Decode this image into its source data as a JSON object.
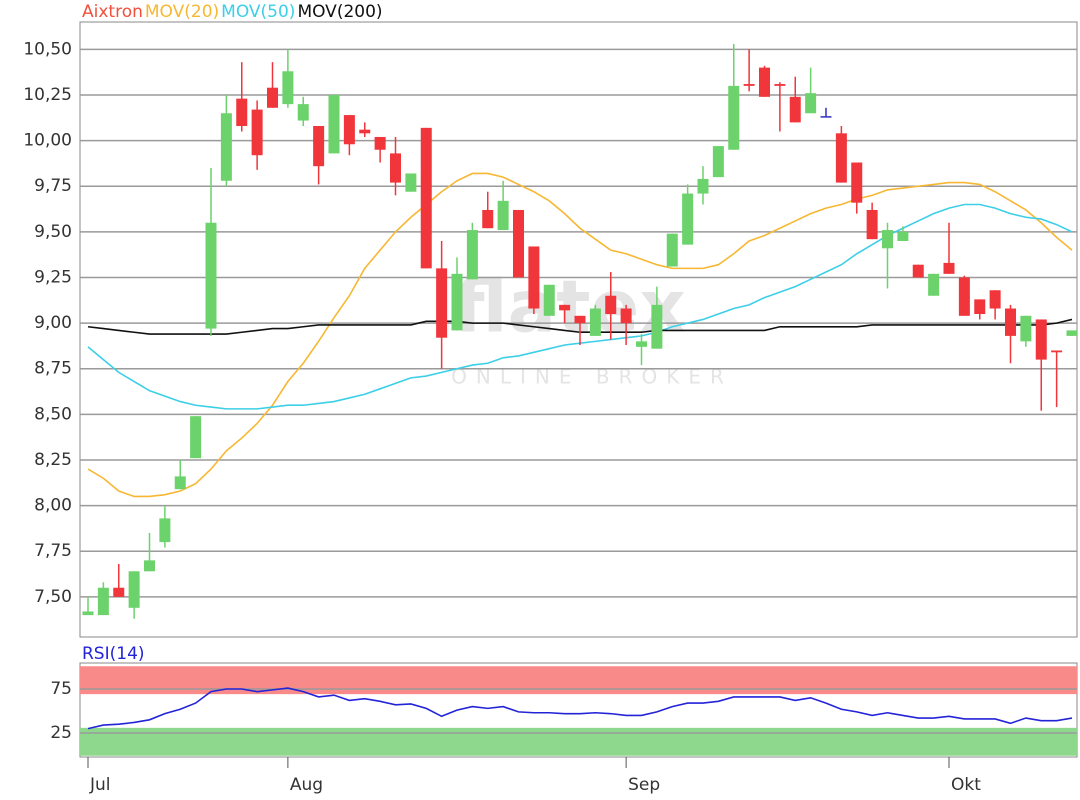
{
  "chart_data": [
    {
      "type": "candlestick",
      "name": "Aixtron",
      "name_color": "#f0503c",
      "up_color": "#6cd26c",
      "down_color": "#f0353b",
      "flat_color": "#3030c0",
      "categories": [
        "Jul",
        null,
        null,
        null,
        null,
        null,
        null,
        null,
        null,
        null,
        null,
        null,
        null,
        "Aug",
        null,
        null,
        null,
        null,
        null,
        null,
        null,
        null,
        null,
        null,
        null,
        null,
        null,
        null,
        null,
        null,
        null,
        null,
        null,
        null,
        null,
        "Sep",
        null,
        null,
        null,
        null,
        null,
        null,
        null,
        null,
        null,
        null,
        null,
        null,
        null,
        null,
        null,
        null,
        null,
        null,
        null,
        null,
        "Okt",
        null,
        null,
        null,
        null,
        null,
        null,
        null,
        null
      ],
      "open": [
        7.4,
        7.4,
        7.55,
        7.44,
        7.64,
        7.8,
        8.09,
        8.26,
        8.97,
        9.78,
        10.23,
        10.17,
        10.29,
        10.2,
        10.11,
        10.08,
        9.93,
        10.14,
        10.06,
        10.02,
        9.93,
        9.72,
        10.07,
        9.3,
        8.96,
        9.24,
        9.62,
        9.51,
        9.62,
        9.42,
        9.04,
        9.1,
        9.04,
        8.93,
        9.15,
        9.08,
        8.87,
        8.86,
        9.31,
        9.43,
        9.71,
        9.8,
        9.95,
        10.31,
        10.4,
        10.31,
        10.24,
        10.15,
        10.13,
        10.04,
        9.88,
        9.62,
        9.41,
        9.45,
        9.32,
        9.15,
        9.33,
        9.25,
        9.13,
        9.18,
        9.08,
        8.9,
        9.02,
        8.85,
        8.93
      ],
      "high": [
        7.5,
        7.58,
        7.68,
        7.64,
        7.85,
        8.0,
        8.25,
        8.49,
        9.85,
        10.25,
        10.43,
        10.22,
        10.43,
        10.5,
        10.24,
        10.08,
        10.25,
        10.14,
        10.1,
        10.02,
        10.02,
        9.82,
        10.07,
        9.45,
        9.36,
        9.55,
        9.72,
        9.78,
        9.62,
        9.42,
        9.21,
        9.1,
        9.04,
        9.1,
        9.28,
        9.1,
        8.94,
        9.2,
        9.49,
        9.76,
        9.86,
        9.97,
        10.53,
        10.5,
        10.41,
        10.32,
        10.35,
        10.4,
        10.18,
        10.08,
        9.88,
        9.66,
        9.55,
        9.53,
        9.32,
        9.27,
        9.55,
        9.26,
        9.13,
        9.18,
        9.1,
        9.04,
        9.02,
        8.85,
        8.96
      ],
      "low": [
        7.4,
        7.4,
        7.5,
        7.38,
        7.64,
        7.77,
        8.09,
        8.26,
        8.93,
        9.75,
        10.05,
        9.84,
        10.18,
        10.18,
        10.08,
        9.76,
        9.93,
        9.92,
        10.02,
        9.88,
        9.7,
        9.72,
        9.3,
        8.75,
        8.96,
        9.24,
        9.52,
        9.51,
        9.25,
        9.05,
        9.04,
        9.0,
        8.88,
        8.93,
        8.91,
        8.88,
        8.77,
        8.86,
        9.31,
        9.43,
        9.65,
        9.8,
        9.95,
        10.27,
        10.24,
        10.05,
        10.1,
        10.15,
        10.13,
        9.77,
        9.6,
        9.46,
        9.19,
        9.45,
        9.25,
        9.15,
        9.27,
        9.04,
        9.02,
        9.02,
        8.78,
        8.87,
        8.52,
        8.54,
        8.93
      ],
      "close": [
        7.42,
        7.55,
        7.5,
        7.64,
        7.7,
        7.93,
        8.16,
        8.49,
        9.55,
        10.15,
        10.08,
        9.92,
        10.18,
        10.38,
        10.2,
        9.86,
        10.25,
        9.98,
        10.04,
        9.95,
        9.77,
        9.82,
        9.3,
        8.92,
        9.27,
        9.51,
        9.52,
        9.67,
        9.25,
        9.08,
        9.21,
        9.07,
        9.0,
        9.08,
        9.05,
        9.0,
        8.9,
        9.1,
        9.49,
        9.71,
        9.79,
        9.97,
        10.3,
        10.3,
        10.24,
        10.3,
        10.1,
        10.26,
        10.13,
        9.77,
        9.66,
        9.46,
        9.51,
        9.5,
        9.25,
        9.27,
        9.27,
        9.04,
        9.05,
        9.08,
        8.93,
        9.04,
        8.8,
        8.84,
        8.96
      ],
      "series": [
        {
          "name": "MOV(20)",
          "color": "#f7b733",
          "values": [
            8.2,
            8.15,
            8.08,
            8.05,
            8.05,
            8.06,
            8.08,
            8.12,
            8.2,
            8.3,
            8.37,
            8.45,
            8.55,
            8.68,
            8.78,
            8.9,
            9.03,
            9.15,
            9.3,
            9.4,
            9.5,
            9.58,
            9.65,
            9.72,
            9.78,
            9.82,
            9.82,
            9.8,
            9.76,
            9.72,
            9.67,
            9.6,
            9.52,
            9.46,
            9.4,
            9.38,
            9.35,
            9.32,
            9.3,
            9.3,
            9.3,
            9.32,
            9.38,
            9.45,
            9.48,
            9.52,
            9.56,
            9.6,
            9.63,
            9.65,
            9.68,
            9.7,
            9.73,
            9.74,
            9.75,
            9.76,
            9.77,
            9.77,
            9.76,
            9.72,
            9.67,
            9.62,
            9.55,
            9.47,
            9.4
          ]
        },
        {
          "name": "MOV(50)",
          "color": "#3ccfe8",
          "values": [
            8.87,
            8.8,
            8.73,
            8.68,
            8.63,
            8.6,
            8.57,
            8.55,
            8.54,
            8.53,
            8.53,
            8.53,
            8.54,
            8.55,
            8.55,
            8.56,
            8.57,
            8.59,
            8.61,
            8.64,
            8.67,
            8.7,
            8.71,
            8.73,
            8.75,
            8.77,
            8.78,
            8.81,
            8.82,
            8.84,
            8.86,
            8.88,
            8.89,
            8.9,
            8.91,
            8.92,
            8.93,
            8.95,
            8.98,
            9.0,
            9.02,
            9.05,
            9.08,
            9.1,
            9.14,
            9.17,
            9.2,
            9.24,
            9.28,
            9.32,
            9.38,
            9.43,
            9.48,
            9.52,
            9.56,
            9.6,
            9.63,
            9.65,
            9.65,
            9.63,
            9.6,
            9.58,
            9.57,
            9.54,
            9.5
          ]
        },
        {
          "name": "MOV(200)",
          "color": "#111111",
          "values": [
            8.98,
            8.97,
            8.96,
            8.95,
            8.94,
            8.94,
            8.94,
            8.94,
            8.94,
            8.94,
            8.95,
            8.96,
            8.97,
            8.97,
            8.98,
            8.99,
            8.99,
            8.99,
            8.99,
            8.99,
            8.99,
            8.99,
            9.01,
            9.01,
            9.01,
            9.0,
            9.0,
            9.0,
            8.99,
            8.98,
            8.97,
            8.96,
            8.95,
            8.95,
            8.95,
            8.95,
            8.95,
            8.96,
            8.96,
            8.96,
            8.96,
            8.96,
            8.96,
            8.96,
            8.96,
            8.98,
            8.98,
            8.98,
            8.98,
            8.98,
            8.98,
            8.99,
            8.99,
            8.99,
            8.99,
            8.99,
            8.99,
            8.99,
            8.99,
            8.99,
            8.99,
            8.99,
            8.99,
            9.0,
            9.02
          ]
        }
      ],
      "ylim": [
        7.28,
        10.65
      ],
      "yticks": [
        {
          "value": 7.5,
          "label": "7,50"
        },
        {
          "value": 7.75,
          "label": "7,75"
        },
        {
          "value": 8,
          "label": "8,00"
        },
        {
          "value": 8.25,
          "label": "8,25"
        },
        {
          "value": 8.5,
          "label": "8,50"
        },
        {
          "value": 8.75,
          "label": "8,75"
        },
        {
          "value": 9,
          "label": "9,00"
        },
        {
          "value": 9.25,
          "label": "9,25"
        },
        {
          "value": 9.5,
          "label": "9,50"
        },
        {
          "value": 9.75,
          "label": "9,75"
        },
        {
          "value": 10,
          "label": "10,00"
        },
        {
          "value": 10.25,
          "label": "10,25"
        },
        {
          "value": 10.5,
          "label": "10,50"
        }
      ],
      "grid": true,
      "watermark": {
        "brand": "flatex",
        "tagline": "ONLINE BROKER"
      }
    },
    {
      "type": "line",
      "series": [
        {
          "name": "RSI(14)",
          "color": "#2323d8",
          "values": [
            30,
            34,
            35,
            37,
            40,
            47,
            52,
            59,
            72,
            75,
            75,
            72,
            74,
            76,
            72,
            66,
            68,
            62,
            64,
            61,
            57,
            58,
            53,
            44,
            51,
            55,
            53,
            55,
            49,
            48,
            48,
            47,
            47,
            48,
            47,
            45,
            45,
            49,
            55,
            59,
            59,
            61,
            66,
            66,
            66,
            66,
            62,
            65,
            59,
            52,
            49,
            45,
            48,
            45,
            42,
            42,
            44,
            41,
            41,
            41,
            36,
            42,
            39,
            39,
            42
          ]
        }
      ],
      "ylim": [
        0,
        100
      ],
      "yticks": [
        25,
        75
      ],
      "bands": [
        {
          "range": [
            70,
            100
          ],
          "color": "#f88a8a"
        },
        {
          "range": [
            0,
            30
          ],
          "color": "#8ed88e"
        }
      ],
      "grid": true
    }
  ]
}
